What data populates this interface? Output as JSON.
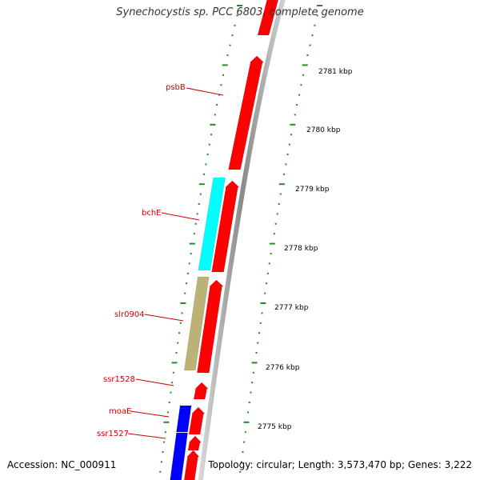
{
  "title": "Synechocystis sp. PCC 6803, complete genome",
  "footer": {
    "accession": "Accession: NC_000911",
    "topology": "Topology: circular; Length: 3,573,470 bp; Genes: 3,222"
  },
  "colors": {
    "forward_gene": "#ff0000",
    "reverse_gene_cyan": "#00ffff",
    "reverse_gene_khaki": "#bdb276",
    "reverse_gene_blue": "#0000ff",
    "label_text": "#cc0000",
    "tick": "#228b22",
    "backbone": "#888888"
  },
  "scale": {
    "unit": "kbp",
    "labels": [
      "2781 kbp",
      "2780 kbp",
      "2779 kbp",
      "2778 kbp",
      "2777 kbp",
      "2776 kbp",
      "2775 kbp"
    ]
  },
  "gene_labels": [
    "psbB",
    "bchE",
    "slr0904",
    "ssr1528",
    "moaE",
    "ssr1527"
  ]
}
